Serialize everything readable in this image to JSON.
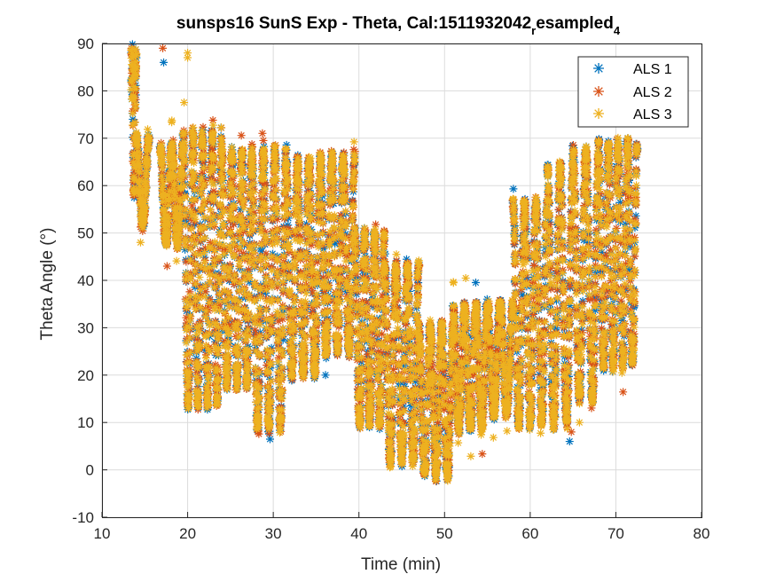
{
  "chart_data": {
    "type": "scatter",
    "title": "sunsps16 SunS Exp - Theta, Cal:1511932042",
    "title_sub": "r",
    "title_tail": "esampled",
    "title_sub2": "4",
    "xlabel": "Time (min)",
    "ylabel": "Theta Angle (°)",
    "xlim": [
      10,
      80
    ],
    "ylim": [
      -10,
      90
    ],
    "xticks": [
      10,
      20,
      30,
      40,
      50,
      60,
      70,
      80
    ],
    "yticks": [
      -10,
      0,
      10,
      20,
      30,
      40,
      50,
      60,
      70,
      80,
      90
    ],
    "grid": true,
    "legend_position": "top-right",
    "marker": "*",
    "series": [
      {
        "name": "ALS 1",
        "color": "#0072BD"
      },
      {
        "name": "ALS 2",
        "color": "#D95319"
      },
      {
        "name": "ALS 3",
        "color": "#EDB120"
      }
    ],
    "segments": [
      {
        "t0": 13.5,
        "t1": 14.0,
        "lo": 58,
        "hi": 88
      },
      {
        "t0": 14.0,
        "t1": 15.5,
        "lo": 52,
        "hi": 70
      },
      {
        "t0": 16.8,
        "t1": 19.5,
        "lo": 48,
        "hi": 68
      },
      {
        "t0": 19.5,
        "t1": 24.0,
        "lo": 14,
        "hi": 71
      },
      {
        "t0": 24.0,
        "t1": 27.5,
        "lo": 18,
        "hi": 67
      },
      {
        "t0": 27.5,
        "t1": 31.5,
        "lo": 9,
        "hi": 67
      },
      {
        "t0": 31.5,
        "t1": 35.5,
        "lo": 20,
        "hi": 65
      },
      {
        "t0": 35.5,
        "t1": 39.5,
        "lo": 25,
        "hi": 66
      },
      {
        "t0": 39.5,
        "t1": 43.0,
        "lo": 10,
        "hi": 50
      },
      {
        "t0": 43.0,
        "t1": 47.0,
        "lo": 2,
        "hi": 43
      },
      {
        "t0": 47.0,
        "t1": 51.0,
        "lo": -1,
        "hi": 30
      },
      {
        "t0": 51.0,
        "t1": 55.0,
        "lo": 9,
        "hi": 34
      },
      {
        "t0": 55.0,
        "t1": 58.0,
        "lo": 12,
        "hi": 35
      },
      {
        "t0": 58.0,
        "t1": 62.0,
        "lo": 10,
        "hi": 56
      },
      {
        "t0": 62.0,
        "t1": 65.0,
        "lo": 10,
        "hi": 64
      },
      {
        "t0": 65.0,
        "t1": 68.0,
        "lo": 15,
        "hi": 67
      },
      {
        "t0": 68.0,
        "t1": 72.5,
        "lo": 22,
        "hi": 69
      }
    ],
    "outliers": [
      {
        "series": 0,
        "x": 13.6,
        "y": 74
      },
      {
        "series": 0,
        "x": 17.2,
        "y": 86
      },
      {
        "series": 1,
        "x": 17.1,
        "y": 89
      },
      {
        "series": 2,
        "x": 20.0,
        "y": 88
      },
      {
        "series": 2,
        "x": 20.0,
        "y": 87
      },
      {
        "series": 2,
        "x": 14.5,
        "y": 48
      },
      {
        "series": 1,
        "x": 17.6,
        "y": 43
      },
      {
        "series": 0,
        "x": 17.6,
        "y": 48
      },
      {
        "series": 0,
        "x": 36.1,
        "y": 20
      },
      {
        "series": 2,
        "x": 36.0,
        "y": 26
      },
      {
        "series": 0,
        "x": 64.6,
        "y": 6
      },
      {
        "series": 1,
        "x": 64.8,
        "y": 8
      },
      {
        "series": 0,
        "x": 66.2,
        "y": 27
      },
      {
        "series": 0,
        "x": 66.4,
        "y": 32
      },
      {
        "series": 0,
        "x": 58.3,
        "y": 33
      }
    ]
  }
}
